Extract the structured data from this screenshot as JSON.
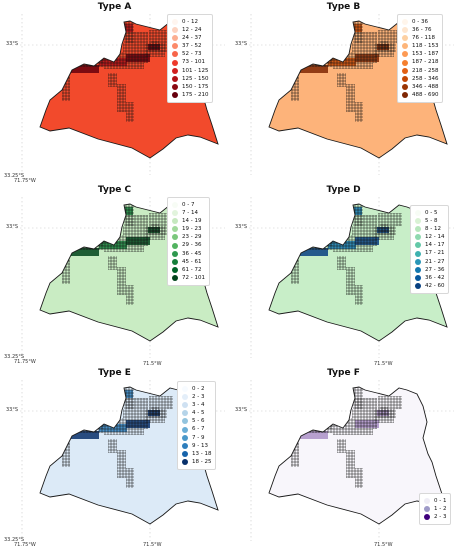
{
  "panels": [
    {
      "title": "Type A",
      "fill": "#f24a2c",
      "legend": [
        {
          "label": "0 - 12",
          "color": "#fff5ef"
        },
        {
          "label": "12 - 24",
          "color": "#fdd2bf"
        },
        {
          "label": "24 - 37",
          "color": "#fcae91"
        },
        {
          "label": "37 - 52",
          "color": "#fc8a6a"
        },
        {
          "label": "52 - 73",
          "color": "#f7654a"
        },
        {
          "label": "73 - 101",
          "color": "#ee3a2c"
        },
        {
          "label": "101 - 125",
          "color": "#d0201f"
        },
        {
          "label": "125 - 150",
          "color": "#b01217"
        },
        {
          "label": "150 - 175",
          "color": "#8a0911"
        },
        {
          "label": "175 - 210",
          "color": "#67000d"
        }
      ]
    },
    {
      "title": "Type B",
      "fill": "#fdb37a",
      "legend": [
        {
          "label": "0 - 36",
          "color": "#fff5eb"
        },
        {
          "label": "36 - 76",
          "color": "#fee6cf"
        },
        {
          "label": "76 - 118",
          "color": "#fdd0a2"
        },
        {
          "label": "118 - 153",
          "color": "#fdb57a"
        },
        {
          "label": "153 - 187",
          "color": "#fd9a54"
        },
        {
          "label": "187 - 218",
          "color": "#f57f2e"
        },
        {
          "label": "218 - 258",
          "color": "#e26013"
        },
        {
          "label": "258 - 346",
          "color": "#c44703"
        },
        {
          "label": "346 - 488",
          "color": "#9a3503"
        },
        {
          "label": "488 - 690",
          "color": "#7f2704"
        }
      ]
    },
    {
      "title": "Type C",
      "fill": "#c9ecc3",
      "legend": [
        {
          "label": "0 - 7",
          "color": "#f7fcf5"
        },
        {
          "label": "7 - 14",
          "color": "#e2f4dd"
        },
        {
          "label": "14 - 19",
          "color": "#c6e8bf"
        },
        {
          "label": "19 - 23",
          "color": "#a2d99c"
        },
        {
          "label": "23 - 29",
          "color": "#7bc77c"
        },
        {
          "label": "29 - 36",
          "color": "#52b360"
        },
        {
          "label": "36 - 45",
          "color": "#2f984f"
        },
        {
          "label": "45 - 61",
          "color": "#157f3b"
        },
        {
          "label": "61 - 72",
          "color": "#006428"
        },
        {
          "label": "72 - 101",
          "color": "#00441b"
        }
      ]
    },
    {
      "title": "Type D",
      "fill": "#c8eec8",
      "legend": [
        {
          "label": "0 - 5",
          "color": "#f7fcf5"
        },
        {
          "label": "5 - 8",
          "color": "#d9f2d4"
        },
        {
          "label": "8 - 12",
          "color": "#b7e6bd"
        },
        {
          "label": "12 - 14",
          "color": "#8fd9b0"
        },
        {
          "label": "14 - 17",
          "color": "#64c8a8"
        },
        {
          "label": "17 - 21",
          "color": "#3fb2b0"
        },
        {
          "label": "21 - 27",
          "color": "#2996b8"
        },
        {
          "label": "27 - 36",
          "color": "#1478b0"
        },
        {
          "label": "36 - 42",
          "color": "#08589e"
        },
        {
          "label": "42 - 60",
          "color": "#084081"
        }
      ]
    },
    {
      "title": "Type E",
      "fill": "#dceaf7",
      "legend": [
        {
          "label": "0 - 2",
          "color": "#f7fbff"
        },
        {
          "label": "2 - 3",
          "color": "#e3eef9"
        },
        {
          "label": "3 - 4",
          "color": "#cfe1f2"
        },
        {
          "label": "4 - 5",
          "color": "#b5d4e9"
        },
        {
          "label": "5 - 6",
          "color": "#93c4de"
        },
        {
          "label": "6 - 7",
          "color": "#6aaed6"
        },
        {
          "label": "7 - 9",
          "color": "#4a98c9"
        },
        {
          "label": "9 - 13",
          "color": "#2e7ebc"
        },
        {
          "label": "13 - 18",
          "color": "#1764ab"
        },
        {
          "label": "18 - 25",
          "color": "#08306b"
        }
      ]
    },
    {
      "title": "Type F",
      "fill": "#f8f6fb",
      "legend": [
        {
          "label": "0 - 1",
          "color": "#efedf5"
        },
        {
          "label": "1 - 2",
          "color": "#9e9ac8"
        },
        {
          "label": "2 - 3",
          "color": "#3f007d"
        }
      ]
    }
  ],
  "axis_labels": {
    "lat_top": "33°S",
    "lat_bottom": "33.25°S",
    "lon_left": "71.75°W",
    "lon_right": "71.5°W"
  }
}
